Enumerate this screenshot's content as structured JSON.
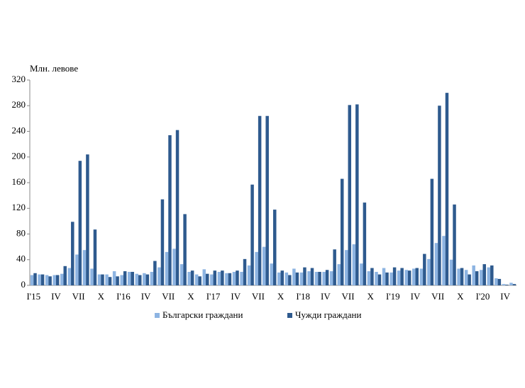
{
  "chart_data": {
    "type": "bar",
    "y_label": "Млн. левове",
    "categories": [
      "I'15",
      null,
      null,
      "IV",
      null,
      null,
      "VII",
      null,
      null,
      "X",
      null,
      null,
      "I'16",
      null,
      null,
      "IV",
      null,
      null,
      "VII",
      null,
      null,
      "X",
      null,
      null,
      "I'17",
      null,
      null,
      "IV",
      null,
      null,
      "VII",
      null,
      null,
      "X",
      null,
      null,
      "I'18",
      null,
      null,
      "IV",
      null,
      null,
      "VII",
      null,
      null,
      "X",
      null,
      null,
      "I'19",
      null,
      null,
      "IV",
      null,
      null,
      "VII",
      null,
      null,
      "X",
      null,
      null,
      "I'20",
      null,
      null,
      "IV",
      null
    ],
    "series": [
      {
        "name": "Български граждани",
        "color": "#8db4e2",
        "values": [
          16,
          17,
          16,
          16,
          18,
          27,
          48,
          55,
          26,
          17,
          17,
          22,
          16,
          21,
          18,
          19,
          21,
          28,
          52,
          57,
          33,
          21,
          17,
          25,
          17,
          21,
          19,
          21,
          21,
          31,
          52,
          60,
          34,
          20,
          20,
          26,
          20,
          22,
          21,
          21,
          22,
          33,
          55,
          64,
          34,
          22,
          21,
          27,
          20,
          23,
          24,
          26,
          26,
          41,
          66,
          77,
          40,
          26,
          24,
          31,
          24,
          28,
          11,
          2,
          4
        ]
      },
      {
        "name": "Чужди граждани",
        "color": "#2e5a8e",
        "values": [
          19,
          17,
          14,
          16,
          30,
          99,
          194,
          204,
          87,
          17,
          13,
          14,
          22,
          21,
          16,
          17,
          38,
          134,
          234,
          242,
          111,
          23,
          14,
          18,
          23,
          23,
          19,
          23,
          41,
          157,
          264,
          264,
          118,
          23,
          16,
          20,
          28,
          27,
          21,
          24,
          56,
          166,
          281,
          282,
          129,
          27,
          17,
          20,
          28,
          27,
          23,
          27,
          49,
          166,
          280,
          300,
          126,
          27,
          17,
          22,
          33,
          31,
          10,
          1,
          2
        ]
      }
    ],
    "ylim": [
      0,
      320
    ],
    "yticks": [
      0,
      40,
      80,
      120,
      160,
      200,
      240,
      280,
      320
    ],
    "grid": false
  }
}
